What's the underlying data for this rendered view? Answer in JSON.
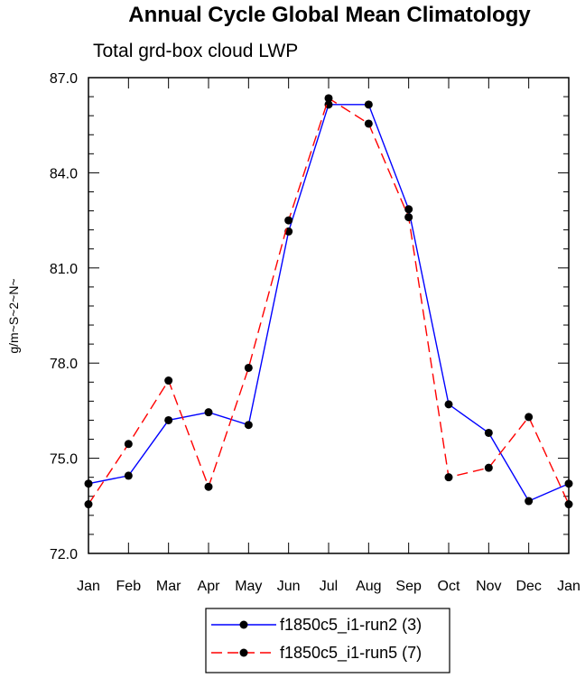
{
  "chart_data": {
    "type": "line",
    "title": "Annual Cycle Global Mean Climatology",
    "subtitle": "Total grd-box cloud LWP",
    "xlabel": "",
    "ylabel": "g/m~S~2~N~",
    "ylim": [
      72.0,
      87.0
    ],
    "yticks": [
      "72.0",
      "75.0",
      "78.0",
      "81.0",
      "84.0",
      "87.0"
    ],
    "categories": [
      "Jan",
      "Feb",
      "Mar",
      "Apr",
      "May",
      "Jun",
      "Jul",
      "Aug",
      "Sep",
      "Oct",
      "Nov",
      "Dec",
      "Jan"
    ],
    "series": [
      {
        "name": "f1850c5_i1-run2 (3)",
        "color": "#0000ff",
        "dash": "solid",
        "values": [
          74.2,
          74.45,
          76.2,
          76.45,
          76.05,
          82.15,
          86.15,
          86.15,
          82.85,
          76.7,
          75.8,
          73.65,
          74.2
        ]
      },
      {
        "name": "f1850c5_i1-run5 (7)",
        "color": "#ff0000",
        "dash": "dashed",
        "values": [
          73.55,
          75.45,
          77.45,
          74.1,
          77.85,
          82.5,
          86.35,
          85.55,
          82.6,
          74.4,
          74.7,
          76.3,
          73.55
        ]
      }
    ]
  }
}
